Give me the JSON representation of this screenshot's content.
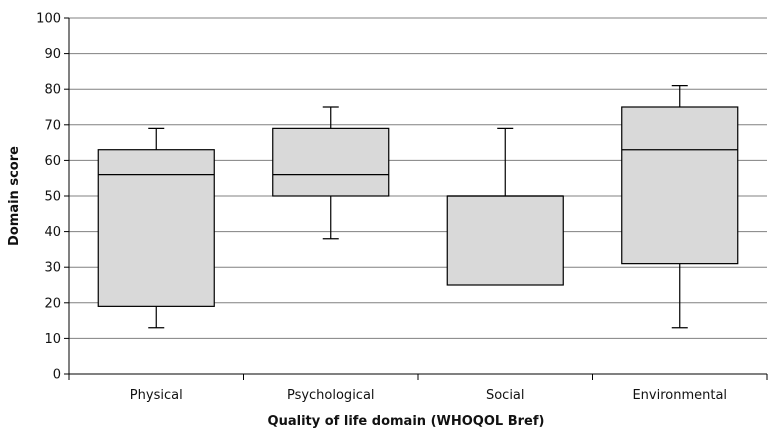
{
  "chart_data": {
    "type": "boxplot",
    "xlabel": "Quality of life domain (WHOQOL Bref)",
    "ylabel": "Domain score",
    "ylim": [
      0,
      100
    ],
    "yticks": [
      0,
      10,
      20,
      30,
      40,
      50,
      60,
      70,
      80,
      90,
      100
    ],
    "grid": true,
    "colors": {
      "box_fill": "#d9d9d9",
      "stroke": "#000000",
      "grid": "#808080"
    },
    "categories": [
      "Physical",
      "Psychological",
      "Social",
      "Environmental"
    ],
    "boxes": [
      {
        "category": "Physical",
        "whisker_low": 13,
        "q1": 19,
        "median": 56,
        "q3": 63,
        "whisker_high": 69
      },
      {
        "category": "Psychological",
        "whisker_low": 38,
        "q1": 50,
        "median": 56,
        "q3": 69,
        "whisker_high": 75
      },
      {
        "category": "Social",
        "whisker_low": 25,
        "q1": 25,
        "median": 50,
        "q3": 50,
        "whisker_high": 69
      },
      {
        "category": "Environmental",
        "whisker_low": 13,
        "q1": 31,
        "median": 63,
        "q3": 75,
        "whisker_high": 81
      }
    ]
  }
}
